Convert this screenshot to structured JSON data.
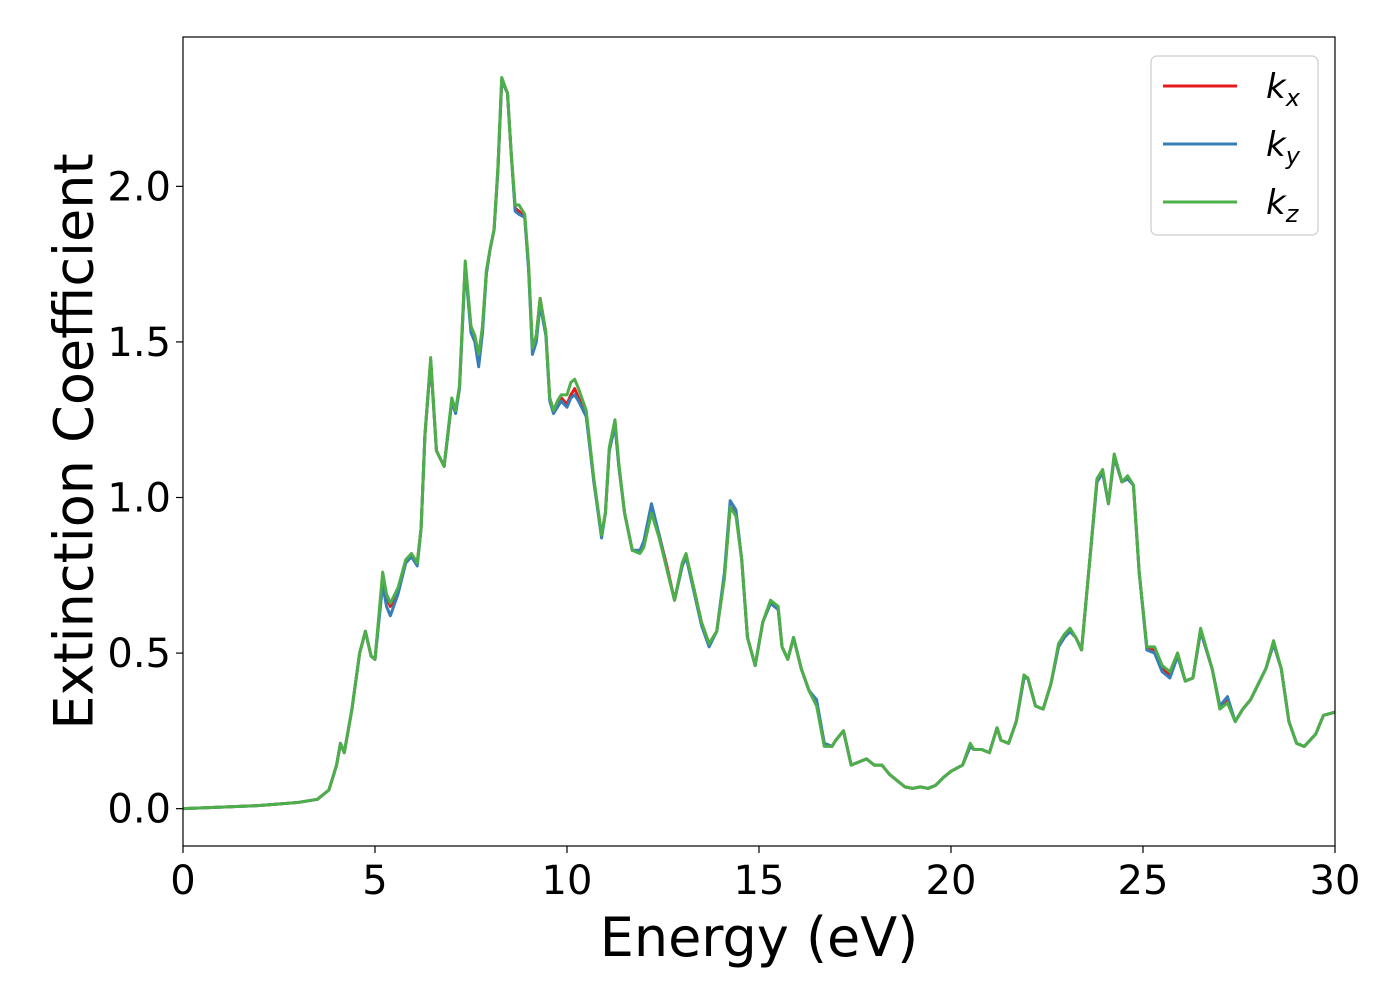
{
  "chart_data": {
    "type": "line",
    "title": "",
    "xlabel": "Energy (eV)",
    "ylabel": "Extinction Coefficient",
    "xlim": [
      0,
      30
    ],
    "ylim": [
      -0.12,
      2.48
    ],
    "xticks": [
      0,
      5,
      10,
      15,
      20,
      25,
      30
    ],
    "xtick_labels": [
      "0",
      "5",
      "10",
      "15",
      "20",
      "25",
      "30"
    ],
    "yticks": [
      0.0,
      0.5,
      1.0,
      1.5,
      2.0
    ],
    "ytick_labels": [
      "0.0",
      "0.5",
      "1.0",
      "1.5",
      "2.0"
    ],
    "grid": false,
    "legend_position": "top-right",
    "series": [
      {
        "name": "k_x",
        "label_base": "k",
        "label_sub": "x",
        "color": "#e41a1c",
        "x": [
          0,
          1,
          2,
          3,
          3.5,
          3.8,
          4.0,
          4.1,
          4.2,
          4.4,
          4.6,
          4.75,
          4.9,
          5.0,
          5.2,
          5.3,
          5.4,
          5.6,
          5.8,
          5.95,
          6.1,
          6.2,
          6.3,
          6.45,
          6.6,
          6.8,
          7.0,
          7.1,
          7.2,
          7.35,
          7.5,
          7.6,
          7.7,
          7.8,
          7.9,
          8.0,
          8.1,
          8.2,
          8.3,
          8.45,
          8.55,
          8.65,
          8.75,
          8.9,
          9.0,
          9.1,
          9.2,
          9.3,
          9.45,
          9.55,
          9.65,
          9.75,
          9.85,
          10.0,
          10.1,
          10.2,
          10.3,
          10.5,
          10.7,
          10.9,
          11.0,
          11.1,
          11.25,
          11.35,
          11.5,
          11.7,
          11.9,
          12.0,
          12.2,
          12.4,
          12.6,
          12.8,
          13.0,
          13.1,
          13.3,
          13.5,
          13.7,
          13.9,
          14.1,
          14.25,
          14.4,
          14.55,
          14.7,
          14.9,
          15.1,
          15.3,
          15.5,
          15.6,
          15.75,
          15.9,
          16.1,
          16.3,
          16.5,
          16.7,
          16.9,
          17.0,
          17.2,
          17.4,
          17.6,
          17.8,
          18.0,
          18.2,
          18.4,
          18.6,
          18.8,
          19.0,
          19.2,
          19.4,
          19.6,
          19.8,
          20.0,
          20.3,
          20.5,
          20.6,
          20.8,
          21.0,
          21.2,
          21.3,
          21.5,
          21.7,
          21.9,
          22.0,
          22.2,
          22.4,
          22.6,
          22.8,
          22.95,
          23.1,
          23.25,
          23.4,
          23.6,
          23.8,
          23.95,
          24.1,
          24.25,
          24.45,
          24.6,
          24.75,
          24.9,
          25.1,
          25.3,
          25.5,
          25.7,
          25.9,
          26.1,
          26.3,
          26.5,
          26.8,
          27.0,
          27.2,
          27.4,
          27.6,
          27.8,
          28.0,
          28.2,
          28.4,
          28.6,
          28.8,
          29.0,
          29.2,
          29.5,
          29.7,
          30.0
        ],
        "y": [
          0,
          0.005,
          0.01,
          0.02,
          0.03,
          0.06,
          0.14,
          0.21,
          0.18,
          0.32,
          0.5,
          0.57,
          0.49,
          0.48,
          0.74,
          0.68,
          0.65,
          0.7,
          0.79,
          0.81,
          0.79,
          0.9,
          1.2,
          1.44,
          1.15,
          1.1,
          1.31,
          1.28,
          1.35,
          1.75,
          1.54,
          1.52,
          1.44,
          1.55,
          1.72,
          1.8,
          1.86,
          2.05,
          2.34,
          2.3,
          2.1,
          1.93,
          1.92,
          1.9,
          1.74,
          1.48,
          1.52,
          1.64,
          1.53,
          1.32,
          1.28,
          1.3,
          1.32,
          1.3,
          1.33,
          1.35,
          1.32,
          1.27,
          1.05,
          0.88,
          0.95,
          1.15,
          1.24,
          1.1,
          0.95,
          0.83,
          0.83,
          0.85,
          0.96,
          0.88,
          0.78,
          0.67,
          0.78,
          0.81,
          0.71,
          0.6,
          0.53,
          0.57,
          0.75,
          0.97,
          0.95,
          0.8,
          0.55,
          0.46,
          0.6,
          0.66,
          0.64,
          0.52,
          0.48,
          0.55,
          0.45,
          0.38,
          0.34,
          0.21,
          0.2,
          0.22,
          0.25,
          0.14,
          0.15,
          0.16,
          0.14,
          0.14,
          0.11,
          0.09,
          0.07,
          0.065,
          0.07,
          0.065,
          0.075,
          0.1,
          0.12,
          0.14,
          0.2,
          0.19,
          0.19,
          0.18,
          0.26,
          0.22,
          0.21,
          0.28,
          0.42,
          0.42,
          0.33,
          0.32,
          0.4,
          0.52,
          0.55,
          0.57,
          0.55,
          0.51,
          0.78,
          1.05,
          1.08,
          0.98,
          1.13,
          1.05,
          1.06,
          1.04,
          0.76,
          0.52,
          0.51,
          0.45,
          0.43,
          0.5,
          0.41,
          0.42,
          0.57,
          0.45,
          0.33,
          0.35,
          0.28,
          0.32,
          0.35,
          0.4,
          0.45,
          0.53,
          0.45,
          0.28,
          0.21,
          0.2,
          0.24,
          0.3,
          0.31
        ]
      },
      {
        "name": "k_y",
        "label_base": "k",
        "label_sub": "y",
        "color": "#377eb8",
        "x": [
          0,
          1,
          2,
          3,
          3.5,
          3.8,
          4.0,
          4.1,
          4.2,
          4.4,
          4.6,
          4.75,
          4.9,
          5.0,
          5.2,
          5.3,
          5.4,
          5.6,
          5.8,
          5.95,
          6.1,
          6.2,
          6.3,
          6.45,
          6.6,
          6.8,
          7.0,
          7.1,
          7.2,
          7.35,
          7.5,
          7.6,
          7.7,
          7.8,
          7.9,
          8.0,
          8.1,
          8.2,
          8.3,
          8.45,
          8.55,
          8.65,
          8.75,
          8.9,
          9.0,
          9.1,
          9.2,
          9.3,
          9.45,
          9.55,
          9.65,
          9.75,
          9.85,
          10.0,
          10.1,
          10.2,
          10.3,
          10.5,
          10.7,
          10.9,
          11.0,
          11.1,
          11.25,
          11.35,
          11.5,
          11.7,
          11.9,
          12.0,
          12.2,
          12.4,
          12.6,
          12.8,
          13.0,
          13.1,
          13.3,
          13.5,
          13.7,
          13.9,
          14.1,
          14.25,
          14.4,
          14.55,
          14.7,
          14.9,
          15.1,
          15.3,
          15.5,
          15.6,
          15.75,
          15.9,
          16.1,
          16.3,
          16.5,
          16.7,
          16.9,
          17.0,
          17.2,
          17.4,
          17.6,
          17.8,
          18.0,
          18.2,
          18.4,
          18.6,
          18.8,
          19.0,
          19.2,
          19.4,
          19.6,
          19.8,
          20.0,
          20.3,
          20.5,
          20.6,
          20.8,
          21.0,
          21.2,
          21.3,
          21.5,
          21.7,
          21.9,
          22.0,
          22.2,
          22.4,
          22.6,
          22.8,
          22.95,
          23.1,
          23.25,
          23.4,
          23.6,
          23.8,
          23.95,
          24.1,
          24.25,
          24.45,
          24.6,
          24.75,
          24.9,
          25.1,
          25.3,
          25.5,
          25.7,
          25.9,
          26.1,
          26.3,
          26.5,
          26.8,
          27.0,
          27.2,
          27.4,
          27.6,
          27.8,
          28.0,
          28.2,
          28.4,
          28.6,
          28.8,
          29.0,
          29.2,
          29.5,
          29.7,
          30.0
        ],
        "y": [
          0,
          0.005,
          0.01,
          0.02,
          0.03,
          0.06,
          0.14,
          0.21,
          0.18,
          0.32,
          0.5,
          0.57,
          0.49,
          0.48,
          0.72,
          0.65,
          0.62,
          0.69,
          0.79,
          0.81,
          0.78,
          0.9,
          1.2,
          1.44,
          1.15,
          1.1,
          1.31,
          1.27,
          1.35,
          1.74,
          1.53,
          1.5,
          1.42,
          1.53,
          1.72,
          1.8,
          1.86,
          2.05,
          2.34,
          2.3,
          2.1,
          1.92,
          1.91,
          1.9,
          1.73,
          1.46,
          1.5,
          1.62,
          1.52,
          1.31,
          1.27,
          1.29,
          1.31,
          1.29,
          1.32,
          1.33,
          1.31,
          1.26,
          1.05,
          0.87,
          0.95,
          1.15,
          1.23,
          1.1,
          0.95,
          0.83,
          0.83,
          0.86,
          0.98,
          0.88,
          0.77,
          0.67,
          0.78,
          0.81,
          0.7,
          0.59,
          0.52,
          0.57,
          0.76,
          0.99,
          0.96,
          0.8,
          0.55,
          0.46,
          0.6,
          0.66,
          0.64,
          0.52,
          0.48,
          0.55,
          0.45,
          0.38,
          0.35,
          0.21,
          0.2,
          0.22,
          0.25,
          0.14,
          0.15,
          0.16,
          0.14,
          0.14,
          0.11,
          0.09,
          0.07,
          0.065,
          0.07,
          0.065,
          0.075,
          0.1,
          0.12,
          0.14,
          0.2,
          0.19,
          0.19,
          0.18,
          0.26,
          0.22,
          0.21,
          0.28,
          0.42,
          0.42,
          0.33,
          0.32,
          0.4,
          0.52,
          0.55,
          0.57,
          0.55,
          0.51,
          0.78,
          1.05,
          1.08,
          0.98,
          1.13,
          1.05,
          1.06,
          1.04,
          0.76,
          0.51,
          0.5,
          0.44,
          0.42,
          0.49,
          0.41,
          0.42,
          0.57,
          0.45,
          0.33,
          0.36,
          0.28,
          0.32,
          0.35,
          0.4,
          0.45,
          0.53,
          0.45,
          0.28,
          0.21,
          0.2,
          0.24,
          0.3,
          0.31
        ]
      },
      {
        "name": "k_z",
        "label_base": "k",
        "label_sub": "z",
        "color": "#4daf4a",
        "x": [
          0,
          1,
          2,
          3,
          3.5,
          3.8,
          4.0,
          4.1,
          4.2,
          4.4,
          4.6,
          4.75,
          4.9,
          5.0,
          5.2,
          5.3,
          5.4,
          5.6,
          5.8,
          5.95,
          6.1,
          6.2,
          6.3,
          6.45,
          6.6,
          6.8,
          7.0,
          7.1,
          7.2,
          7.35,
          7.5,
          7.6,
          7.7,
          7.8,
          7.9,
          8.0,
          8.1,
          8.2,
          8.3,
          8.45,
          8.55,
          8.65,
          8.75,
          8.9,
          9.0,
          9.1,
          9.2,
          9.3,
          9.45,
          9.55,
          9.65,
          9.75,
          9.85,
          10.0,
          10.1,
          10.2,
          10.3,
          10.5,
          10.7,
          10.9,
          11.0,
          11.1,
          11.25,
          11.35,
          11.5,
          11.7,
          11.9,
          12.0,
          12.2,
          12.4,
          12.6,
          12.8,
          13.0,
          13.1,
          13.3,
          13.5,
          13.7,
          13.9,
          14.1,
          14.25,
          14.4,
          14.55,
          14.7,
          14.9,
          15.1,
          15.3,
          15.5,
          15.6,
          15.75,
          15.9,
          16.1,
          16.3,
          16.5,
          16.7,
          16.9,
          17.0,
          17.2,
          17.4,
          17.6,
          17.8,
          18.0,
          18.2,
          18.4,
          18.6,
          18.8,
          19.0,
          19.2,
          19.4,
          19.6,
          19.8,
          20.0,
          20.3,
          20.5,
          20.6,
          20.8,
          21.0,
          21.2,
          21.3,
          21.5,
          21.7,
          21.9,
          22.0,
          22.2,
          22.4,
          22.6,
          22.8,
          22.95,
          23.1,
          23.25,
          23.4,
          23.6,
          23.8,
          23.95,
          24.1,
          24.25,
          24.45,
          24.6,
          24.75,
          24.9,
          25.1,
          25.3,
          25.5,
          25.7,
          25.9,
          26.1,
          26.3,
          26.5,
          26.8,
          27.0,
          27.2,
          27.4,
          27.6,
          27.8,
          28.0,
          28.2,
          28.4,
          28.6,
          28.8,
          29.0,
          29.2,
          29.5,
          29.7,
          30.0
        ],
        "y": [
          0,
          0.005,
          0.01,
          0.02,
          0.03,
          0.06,
          0.14,
          0.21,
          0.18,
          0.32,
          0.5,
          0.57,
          0.49,
          0.48,
          0.76,
          0.69,
          0.66,
          0.71,
          0.8,
          0.82,
          0.79,
          0.9,
          1.2,
          1.45,
          1.15,
          1.1,
          1.32,
          1.28,
          1.36,
          1.76,
          1.55,
          1.52,
          1.46,
          1.55,
          1.73,
          1.8,
          1.86,
          2.06,
          2.35,
          2.3,
          2.1,
          1.94,
          1.94,
          1.91,
          1.75,
          1.48,
          1.52,
          1.64,
          1.53,
          1.32,
          1.28,
          1.31,
          1.33,
          1.33,
          1.37,
          1.38,
          1.35,
          1.28,
          1.06,
          0.88,
          0.95,
          1.16,
          1.25,
          1.11,
          0.95,
          0.83,
          0.82,
          0.84,
          0.95,
          0.87,
          0.77,
          0.67,
          0.79,
          0.82,
          0.71,
          0.6,
          0.53,
          0.57,
          0.74,
          0.97,
          0.94,
          0.8,
          0.55,
          0.46,
          0.6,
          0.67,
          0.65,
          0.52,
          0.48,
          0.55,
          0.45,
          0.38,
          0.33,
          0.2,
          0.2,
          0.22,
          0.25,
          0.14,
          0.15,
          0.16,
          0.14,
          0.14,
          0.11,
          0.09,
          0.07,
          0.065,
          0.07,
          0.065,
          0.075,
          0.1,
          0.12,
          0.14,
          0.21,
          0.19,
          0.19,
          0.18,
          0.26,
          0.22,
          0.21,
          0.28,
          0.43,
          0.42,
          0.33,
          0.32,
          0.4,
          0.53,
          0.56,
          0.58,
          0.55,
          0.51,
          0.78,
          1.06,
          1.09,
          0.98,
          1.14,
          1.05,
          1.07,
          1.04,
          0.76,
          0.52,
          0.52,
          0.46,
          0.44,
          0.5,
          0.41,
          0.42,
          0.58,
          0.45,
          0.32,
          0.34,
          0.28,
          0.32,
          0.35,
          0.4,
          0.45,
          0.54,
          0.45,
          0.28,
          0.21,
          0.2,
          0.24,
          0.3,
          0.31
        ]
      }
    ]
  }
}
